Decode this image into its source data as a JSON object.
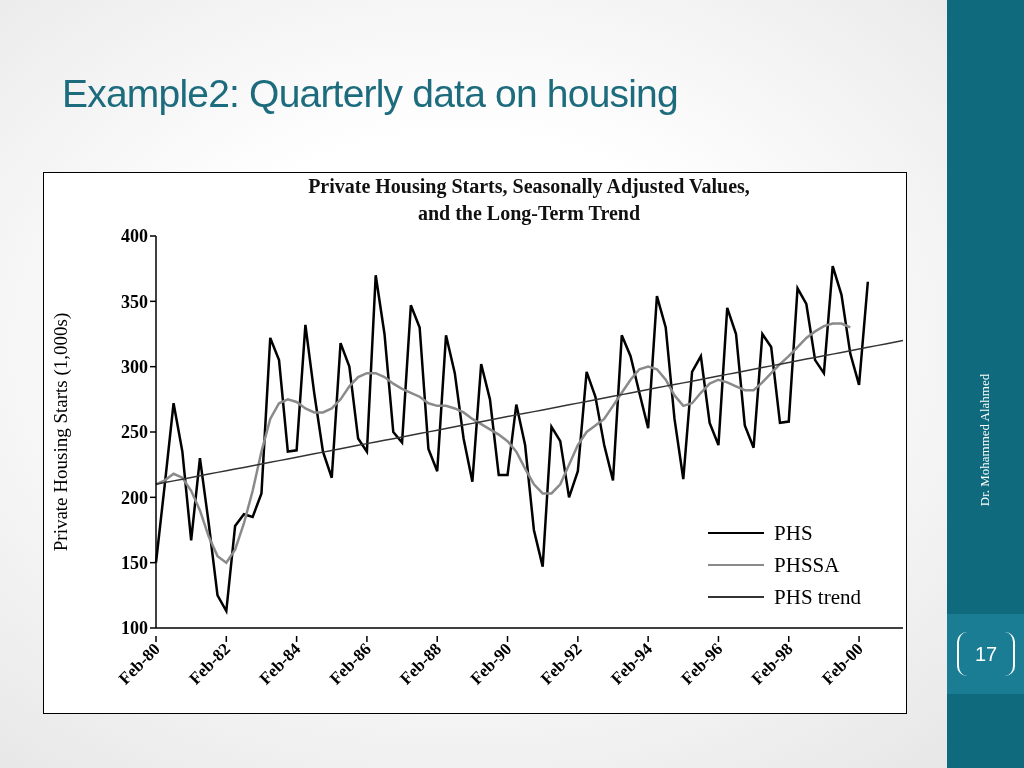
{
  "slide": {
    "title": "Example2: Quarterly data on housing",
    "author": "Dr. Mohammed Alahmed",
    "page": 17
  },
  "chart_data": {
    "type": "line",
    "title": "Private Housing Starts, Seasonally Adjusted Values, and the Long-Term Trend",
    "ylabel": "Private Housing Starts (1,000s)",
    "categories": [
      "Feb-80",
      null,
      null,
      null,
      null,
      null,
      null,
      null,
      "Feb-82",
      null,
      null,
      null,
      null,
      null,
      null,
      null,
      "Feb-84",
      null,
      null,
      null,
      null,
      null,
      null,
      null,
      "Feb-86",
      null,
      null,
      null,
      null,
      null,
      null,
      null,
      "Feb-88",
      null,
      null,
      null,
      null,
      null,
      null,
      null,
      "Feb-90",
      null,
      null,
      null,
      null,
      null,
      null,
      null,
      "Feb-92",
      null,
      null,
      null,
      null,
      null,
      null,
      null,
      "Feb-94",
      null,
      null,
      null,
      null,
      null,
      null,
      null,
      "Feb-96",
      null,
      null,
      null,
      null,
      null,
      null,
      null,
      "Feb-98",
      null,
      null,
      null,
      null,
      null,
      null,
      null,
      "Feb-00",
      null,
      null,
      null,
      null,
      null
    ],
    "series": [
      {
        "name": "PHS",
        "color": "#000000",
        "values": [
          150,
          210,
          272,
          235,
          167,
          230,
          180,
          125,
          113,
          178,
          187,
          185,
          203,
          322,
          305,
          235,
          236,
          332,
          280,
          235,
          215,
          318,
          300,
          245,
          235,
          370,
          325,
          250,
          242,
          347,
          330,
          237,
          220,
          324,
          295,
          245,
          212,
          302,
          275,
          217,
          217,
          271,
          240,
          175,
          147,
          254,
          243,
          200,
          220,
          296,
          277,
          240,
          213,
          324,
          308,
          280,
          253,
          354,
          330,
          260,
          214,
          296,
          308,
          257,
          240,
          345,
          325,
          255,
          238,
          325,
          315,
          257,
          258,
          360,
          348,
          305,
          295,
          377,
          355,
          310,
          286,
          365,
          null,
          null,
          null,
          null
        ]
      },
      {
        "name": "PHSSA",
        "color": "#8a8a8a",
        "values": [
          210,
          213,
          218,
          215,
          205,
          190,
          170,
          155,
          150,
          160,
          180,
          205,
          235,
          260,
          272,
          275,
          273,
          268,
          265,
          265,
          268,
          275,
          285,
          292,
          295,
          295,
          292,
          287,
          283,
          280,
          277,
          272,
          270,
          270,
          268,
          265,
          260,
          256,
          252,
          248,
          243,
          235,
          222,
          210,
          203,
          203,
          210,
          225,
          240,
          250,
          255,
          260,
          270,
          280,
          290,
          298,
          300,
          298,
          290,
          278,
          270,
          272,
          280,
          287,
          290,
          288,
          285,
          282,
          282,
          288,
          295,
          302,
          308,
          315,
          322,
          327,
          331,
          333,
          333,
          330,
          null,
          null,
          null,
          null,
          null,
          null
        ]
      },
      {
        "name": "PHS trend",
        "color": "#333333",
        "values": [
          210,
          211.3,
          212.6,
          213.9,
          215.2,
          216.5,
          217.8,
          219.1,
          220.4,
          221.6,
          222.9,
          224.2,
          225.5,
          226.8,
          228.1,
          229.4,
          230.7,
          232.0,
          233.3,
          234.6,
          235.9,
          237.2,
          238.5,
          239.8,
          241.1,
          242.4,
          243.6,
          244.9,
          246.2,
          247.5,
          248.8,
          250.1,
          251.4,
          252.7,
          254.0,
          255.3,
          256.6,
          257.9,
          259.2,
          260.5,
          261.8,
          263.1,
          264.4,
          265.6,
          266.9,
          268.2,
          269.5,
          270.8,
          272.1,
          273.4,
          274.7,
          276.0,
          277.3,
          278.6,
          279.9,
          281.2,
          282.5,
          283.8,
          285.1,
          286.4,
          287.6,
          288.9,
          290.2,
          291.5,
          292.8,
          294.1,
          295.4,
          296.7,
          298.0,
          299.3,
          300.6,
          301.9,
          303.2,
          304.5,
          305.8,
          307.1,
          308.4,
          309.6,
          310.9,
          312.2,
          313.5,
          314.8,
          316.1,
          317.4,
          318.7,
          320.0
        ]
      }
    ],
    "ylim": [
      100,
      400
    ],
    "yticks": [
      100,
      150,
      200,
      250,
      300,
      350,
      400
    ],
    "legend": "lower right"
  }
}
